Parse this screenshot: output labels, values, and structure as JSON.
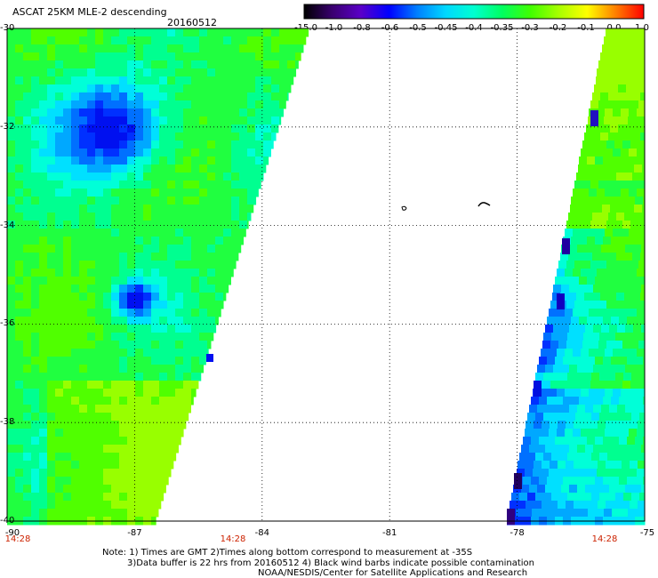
{
  "header": {
    "title": "ASCAT 25KM MLE-2 descending",
    "date": "20160512"
  },
  "colorbar": {
    "labels": [
      "-15.0",
      "-1.0",
      "-0.8",
      "-0.6",
      "-0.5",
      "-0.45",
      "-0.4",
      "-0.35",
      "-0.3",
      "-0.2",
      "-0.1",
      "0.0",
      "1.0"
    ],
    "colors": [
      "#000000",
      "#3a0070",
      "#5a00c8",
      "#0000ff",
      "#0080ff",
      "#00d8ff",
      "#00ffd0",
      "#00ff60",
      "#40ff00",
      "#a8ff00",
      "#ffff00",
      "#ff8000",
      "#ff0000"
    ]
  },
  "axes": {
    "lon_ticks": [
      "-90",
      "-87",
      "-84",
      "-81",
      "-78",
      "-75"
    ],
    "lat_ticks": [
      "-30",
      "-32",
      "-34",
      "-36",
      "-38",
      "-40"
    ],
    "lon_range": [
      -90,
      -75
    ],
    "lat_range": [
      -30,
      -40
    ]
  },
  "times": [
    "14:28",
    "14:28",
    "14:28"
  ],
  "notes": {
    "line1": "Note: 1) Times are GMT 2)Times along bottom correspond to measurement at -35S",
    "line2": "3)Data buffer is 22 hrs from 20160512 4) Black wind barbs indicate possible contamination",
    "line3": "NOAA/NESDIS/Center for Satellite Applications and Research"
  }
}
